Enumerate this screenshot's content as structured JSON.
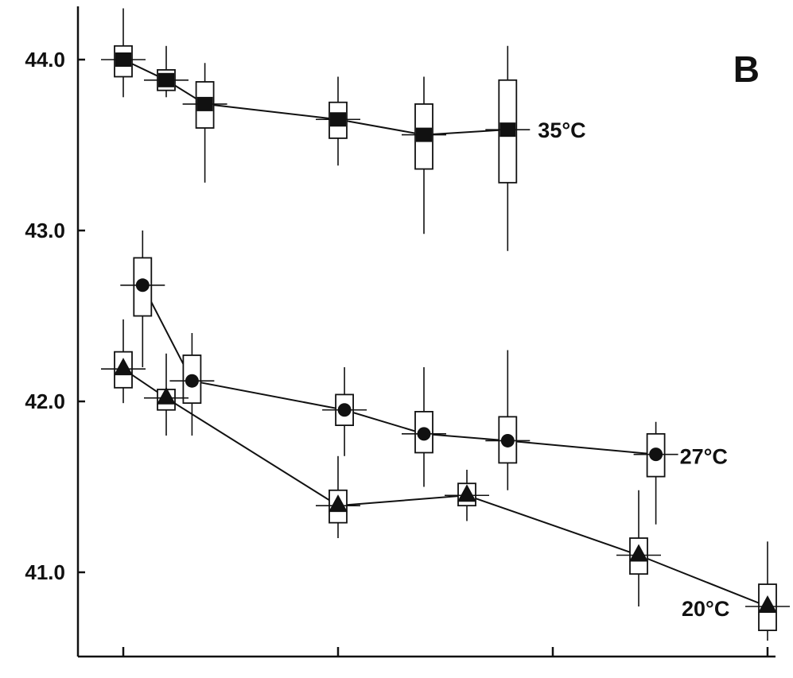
{
  "panel_label": "B",
  "chart_data": {
    "type": "scatter",
    "title": "",
    "xlabel": "",
    "ylabel": "",
    "ylim": [
      40.5,
      44.3
    ],
    "xlim": [
      -0.1,
      3.1
    ],
    "y_ticks": [
      44.0,
      43.0,
      42.0,
      41.0
    ],
    "y_tick_labels": [
      "44.0",
      "43.0",
      "42.0",
      "41.0"
    ],
    "x_ticks": [
      0,
      1,
      2,
      3
    ],
    "x_tick_labels": [
      "",
      "",
      "",
      ""
    ],
    "grid": false,
    "legend": "none",
    "series": [
      {
        "name": "35°C",
        "marker": "square",
        "points": [
          {
            "x": 0.0,
            "y": 44.0,
            "box_low": 43.9,
            "box_high": 44.08,
            "bar_low": 43.78,
            "bar_high": 44.3
          },
          {
            "x": 0.2,
            "y": 43.88,
            "box_low": 43.82,
            "box_high": 43.94,
            "bar_low": 43.78,
            "bar_high": 44.08
          },
          {
            "x": 0.38,
            "y": 43.74,
            "box_low": 43.6,
            "box_high": 43.87,
            "bar_low": 43.28,
            "bar_high": 43.98
          },
          {
            "x": 1.0,
            "y": 43.65,
            "box_low": 43.54,
            "box_high": 43.75,
            "bar_low": 43.38,
            "bar_high": 43.9
          },
          {
            "x": 1.4,
            "y": 43.56,
            "box_low": 43.36,
            "box_high": 43.74,
            "bar_low": 42.98,
            "bar_high": 43.9
          },
          {
            "x": 1.79,
            "y": 43.59,
            "box_low": 43.28,
            "box_high": 43.88,
            "bar_low": 42.88,
            "bar_high": 44.08
          }
        ]
      },
      {
        "name": "27°C",
        "marker": "circle",
        "points": [
          {
            "x": 0.09,
            "y": 42.68,
            "box_low": 42.5,
            "box_high": 42.84,
            "bar_low": 42.2,
            "bar_high": 43.0
          },
          {
            "x": 0.32,
            "y": 42.12,
            "box_low": 41.99,
            "box_high": 42.27,
            "bar_low": 41.8,
            "bar_high": 42.4
          },
          {
            "x": 1.03,
            "y": 41.95,
            "box_low": 41.86,
            "box_high": 42.04,
            "bar_low": 41.68,
            "bar_high": 42.2
          },
          {
            "x": 1.4,
            "y": 41.81,
            "box_low": 41.7,
            "box_high": 41.94,
            "bar_low": 41.5,
            "bar_high": 42.2
          },
          {
            "x": 1.79,
            "y": 41.77,
            "box_low": 41.64,
            "box_high": 41.91,
            "bar_low": 41.48,
            "bar_high": 42.3
          },
          {
            "x": 2.48,
            "y": 41.69,
            "box_low": 41.56,
            "box_high": 41.81,
            "bar_low": 41.28,
            "bar_high": 41.88
          }
        ]
      },
      {
        "name": "20°C",
        "marker": "triangle",
        "points": [
          {
            "x": 0.0,
            "y": 42.19,
            "box_low": 42.08,
            "box_high": 42.29,
            "bar_low": 41.99,
            "bar_high": 42.48
          },
          {
            "x": 0.2,
            "y": 42.02,
            "box_low": 41.95,
            "box_high": 42.07,
            "bar_low": 41.8,
            "bar_high": 42.28
          },
          {
            "x": 1.0,
            "y": 41.39,
            "box_low": 41.29,
            "box_high": 41.48,
            "bar_low": 41.2,
            "bar_high": 41.68
          },
          {
            "x": 1.6,
            "y": 41.45,
            "box_low": 41.39,
            "box_high": 41.52,
            "bar_low": 41.3,
            "bar_high": 41.6
          },
          {
            "x": 2.4,
            "y": 41.1,
            "box_low": 40.99,
            "box_high": 41.2,
            "bar_low": 40.8,
            "bar_high": 41.48
          },
          {
            "x": 3.0,
            "y": 40.8,
            "box_low": 40.66,
            "box_high": 40.93,
            "bar_low": 40.6,
            "bar_high": 41.18
          }
        ]
      }
    ]
  }
}
